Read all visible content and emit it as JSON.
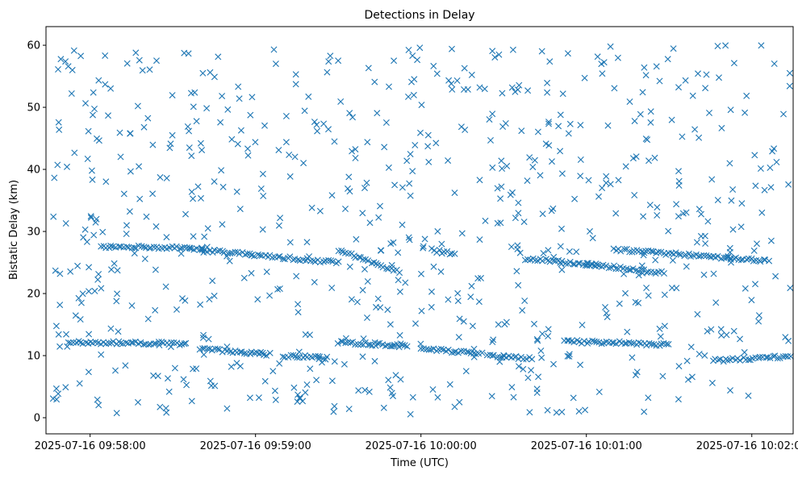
{
  "chart_data": {
    "type": "scatter",
    "title": "Detections in Delay",
    "xlabel": "Time (UTC)",
    "ylabel": "Bistatic Delay (km)",
    "x_tick_labels": [
      "2025-07-16 09:58:00",
      "2025-07-16 09:59:00",
      "2025-07-16 10:00:00",
      "2025-07-16 10:01:00",
      "2025-07-16 10:02:00"
    ],
    "x_tick_seconds": [
      120,
      180,
      240,
      300,
      360
    ],
    "x_unit": "seconds after 2025-07-16 09:56:00 UTC",
    "xlim": [
      104,
      375
    ],
    "y_ticks": [
      0,
      10,
      20,
      30,
      40,
      50,
      60
    ],
    "ylim": [
      -2.6,
      63.0
    ],
    "marker": "x",
    "color": "#1f77b4",
    "series": [
      {
        "name": "track-upper",
        "description": "Dense line of detections near 27 km drifting down to ~23.5 km, then a second track at ~27 km drifting to ~25 km",
        "segments": [
          {
            "x_start": 124,
            "x_end": 156,
            "y_start": 27.6,
            "y_end": 27.4
          },
          {
            "x_start": 156,
            "x_end": 210,
            "y_start": 27.2,
            "y_end": 25.0
          },
          {
            "x_start": 210,
            "x_end": 232,
            "y_start": 27.0,
            "y_end": 23.6
          },
          {
            "x_start": 244,
            "x_end": 252,
            "y_start": 27.0,
            "y_end": 26.3
          },
          {
            "x_start": 278,
            "x_end": 304,
            "y_start": 25.6,
            "y_end": 24.6
          },
          {
            "x_start": 300,
            "x_end": 328,
            "y_start": 24.8,
            "y_end": 23.3
          },
          {
            "x_start": 310,
            "x_end": 366,
            "y_start": 27.1,
            "y_end": 25.3
          }
        ]
      },
      {
        "name": "track-lower",
        "description": "Dense line of detections near 12 km drifting down to ~9.5 km",
        "segments": [
          {
            "x_start": 112,
            "x_end": 155,
            "y_start": 12.2,
            "y_end": 11.9
          },
          {
            "x_start": 160,
            "x_end": 185,
            "y_start": 11.1,
            "y_end": 10.2
          },
          {
            "x_start": 190,
            "x_end": 206,
            "y_start": 10.0,
            "y_end": 9.6
          },
          {
            "x_start": 210,
            "x_end": 235,
            "y_start": 12.2,
            "y_end": 11.5
          },
          {
            "x_start": 240,
            "x_end": 262,
            "y_start": 11.1,
            "y_end": 10.3
          },
          {
            "x_start": 264,
            "x_end": 280,
            "y_start": 10.0,
            "y_end": 9.5
          },
          {
            "x_start": 292,
            "x_end": 330,
            "y_start": 12.3,
            "y_end": 11.8
          },
          {
            "x_start": 346,
            "x_end": 374,
            "y_start": 9.2,
            "y_end": 9.9
          }
        ]
      },
      {
        "name": "clutter",
        "description": "Roughly uniform random false detections",
        "count": 720,
        "x_range": [
          106,
          374
        ],
        "y_range": [
          0.5,
          60.0
        ]
      }
    ]
  }
}
